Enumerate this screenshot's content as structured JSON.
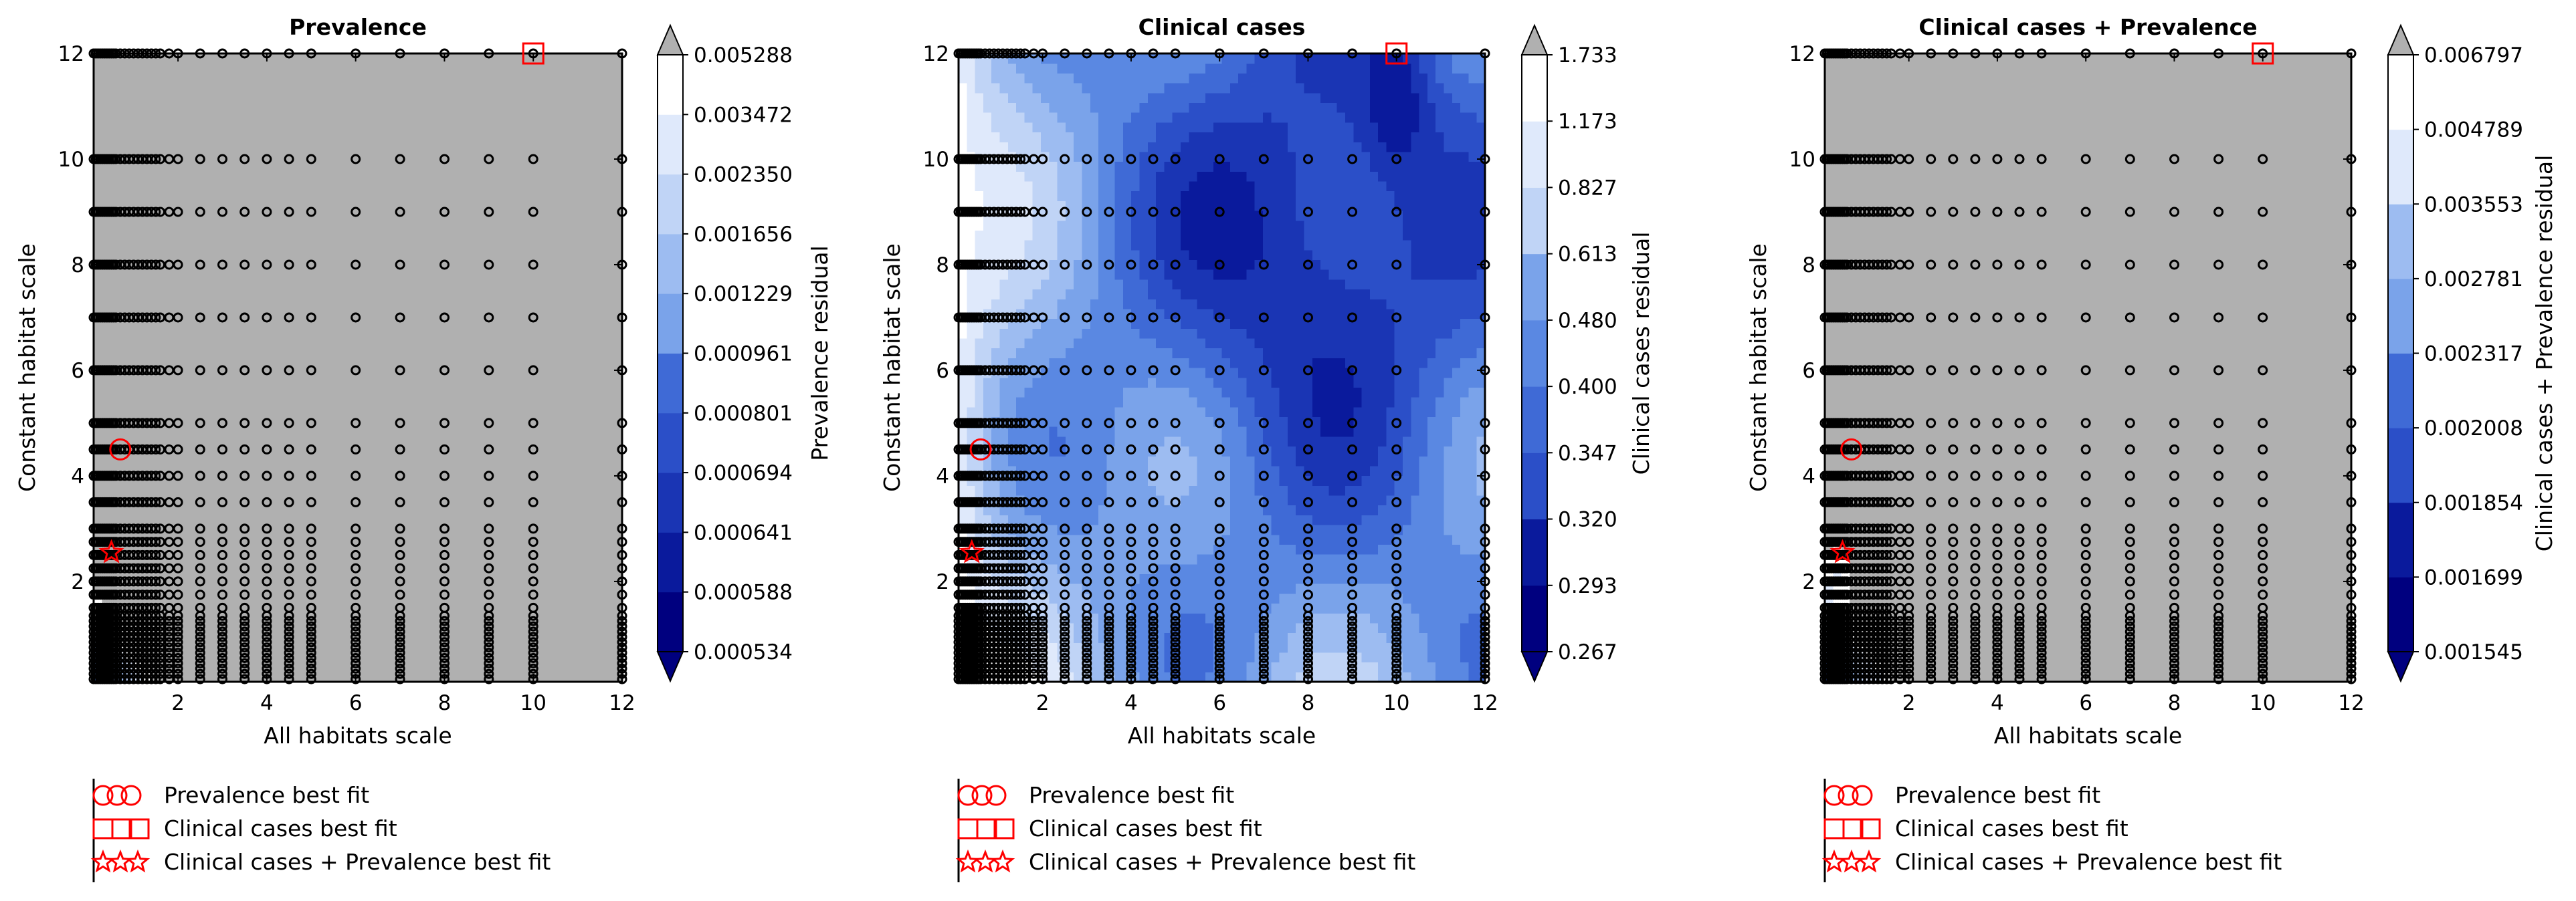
{
  "chart_data": [
    {
      "type": "contour",
      "title": "Prevalence",
      "xlabel": "All habitats scale",
      "ylabel": "Constant habitat scale",
      "colorbar_label": "Prevalence residual",
      "xlim": [
        0.1,
        12
      ],
      "ylim": [
        0.1,
        12
      ],
      "xticks": [
        "2",
        "4",
        "6",
        "8",
        "10",
        "12"
      ],
      "yticks": [
        "2",
        "4",
        "6",
        "8",
        "10",
        "12"
      ],
      "levels": [
        "0.000534",
        "0.000588",
        "0.000641",
        "0.000694",
        "0.000801",
        "0.000961",
        "0.001229",
        "0.001656",
        "0.002350",
        "0.003472",
        "0.005288"
      ],
      "above_max_color": "#b0b0b0",
      "best_fit": {
        "prevalence": [
          0.7,
          4.5
        ],
        "clinical": [
          10.0,
          12.0
        ],
        "combined": [
          0.5,
          2.55
        ]
      }
    },
    {
      "type": "contour",
      "title": "Clinical cases",
      "xlabel": "All habitats scale",
      "ylabel": "Constant habitat scale",
      "colorbar_label": "Clinical cases residual",
      "xlim": [
        0.1,
        12
      ],
      "ylim": [
        0.1,
        12
      ],
      "xticks": [
        "2",
        "4",
        "6",
        "8",
        "10",
        "12"
      ],
      "yticks": [
        "2",
        "4",
        "6",
        "8",
        "10",
        "12"
      ],
      "levels": [
        "0.267",
        "0.293",
        "0.320",
        "0.347",
        "0.400",
        "0.480",
        "0.613",
        "0.827",
        "1.173",
        "1.733"
      ],
      "above_max_color": "#b0b0b0",
      "best_fit": {
        "prevalence": [
          0.6,
          4.5
        ],
        "clinical": [
          10.0,
          12.0
        ],
        "combined": [
          0.4,
          2.55
        ]
      }
    },
    {
      "type": "contour",
      "title": "Clinical cases + Prevalence",
      "xlabel": "All habitats scale",
      "ylabel": "Constant habitat scale",
      "colorbar_label": "Clinical cases + Prevalence residual",
      "xlim": [
        0.1,
        12
      ],
      "ylim": [
        0.1,
        12
      ],
      "xticks": [
        "2",
        "4",
        "6",
        "8",
        "10",
        "12"
      ],
      "yticks": [
        "2",
        "4",
        "6",
        "8",
        "10",
        "12"
      ],
      "levels": [
        "0.001545",
        "0.001699",
        "0.001854",
        "0.002008",
        "0.002317",
        "0.002781",
        "0.003553",
        "0.004789",
        "0.006797"
      ],
      "above_max_color": "#b0b0b0",
      "best_fit": {
        "prevalence": [
          0.7,
          4.5
        ],
        "clinical": [
          10.0,
          12.0
        ],
        "combined": [
          0.5,
          2.55
        ]
      }
    }
  ],
  "legend": {
    "items": [
      "Prevalence best fit",
      "Clinical cases best fit",
      "Clinical cases + Prevalence best fit"
    ]
  },
  "colors": {
    "marker": "#ff0000",
    "above_max": "#b0b0b0",
    "palette": [
      "#00007f",
      "#0a1a9c",
      "#1a35b4",
      "#2b4fc8",
      "#3f6ad6",
      "#5a88e2",
      "#7aa3ea",
      "#9dbcf1",
      "#c0d4f6",
      "#dfe9fb",
      "#ffffff"
    ]
  }
}
